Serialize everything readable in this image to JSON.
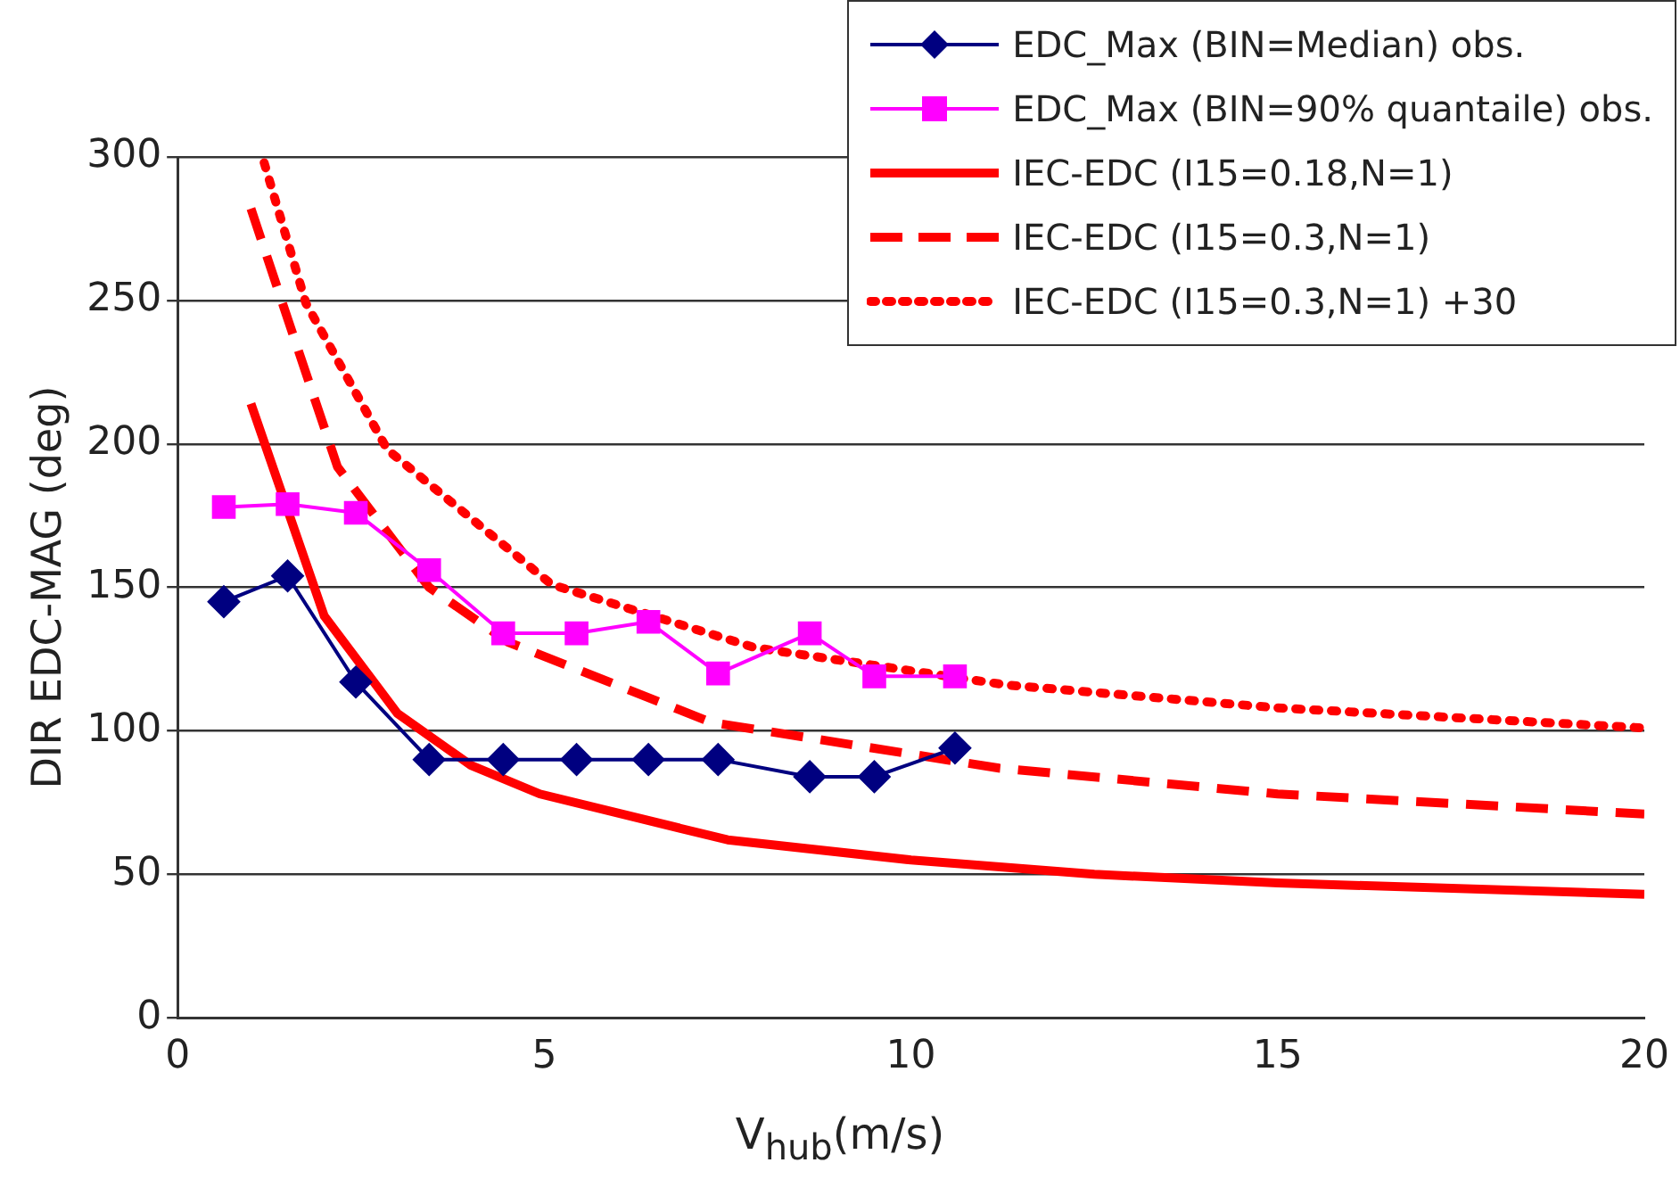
{
  "chart_data": {
    "type": "line",
    "xlabel": "V$_{hub}$(m/s)",
    "ylabel": "DIR EDC-MAG (deg)",
    "xlim": [
      0,
      20
    ],
    "xticks": [
      0,
      5,
      10,
      15,
      20
    ],
    "ylim": [
      0,
      300
    ],
    "yticks": [
      0,
      50,
      100,
      150,
      200,
      250,
      300
    ],
    "grid": "y",
    "legend": "top right",
    "series": [
      {
        "name": "EDC_Max (BIN=Median) obs.",
        "color": "#000080",
        "marker": "diamond",
        "line_style": "solid",
        "x": [
          0.63,
          1.5,
          2.43,
          3.43,
          4.44,
          5.44,
          6.42,
          7.37,
          8.62,
          9.5,
          10.6
        ],
        "values": [
          145,
          154,
          117,
          90,
          90,
          90,
          90,
          90,
          84,
          84,
          94
        ]
      },
      {
        "name": "EDC_Max (BIN=90% quantaile) obs.",
        "color": "#ff00ff",
        "marker": "square",
        "line_style": "solid",
        "x": [
          0.63,
          1.5,
          2.43,
          3.43,
          4.44,
          5.44,
          6.42,
          7.37,
          8.62,
          9.5,
          10.6
        ],
        "values": [
          178,
          179,
          176,
          156,
          134,
          134,
          138,
          120,
          134,
          119,
          119
        ]
      },
      {
        "name": "IEC-EDC (I15=0.18,N=1)",
        "color": "#ff0000",
        "marker": "none",
        "line_style": "solid",
        "x": [
          1,
          2,
          3,
          4,
          4.94,
          7.5,
          10,
          12.5,
          15,
          20
        ],
        "values": [
          214,
          140,
          106,
          88,
          78,
          62,
          55,
          50,
          47,
          43
        ]
      },
      {
        "name": "IEC-EDC (I15=0.3,N=1)",
        "color": "#ff0000",
        "marker": "none",
        "line_style": "dashed",
        "x": [
          1,
          1.43,
          2.18,
          3.43,
          4.5,
          7.27,
          11.2,
          15,
          20
        ],
        "values": [
          282,
          249,
          192,
          150,
          131,
          103,
          87,
          78,
          71
        ]
      },
      {
        "name": "IEC-EDC (I15=0.3,N=1) +30",
        "color": "#ff0000",
        "marker": "none",
        "line_style": "dotted",
        "x": [
          1.18,
          1.75,
          2.86,
          5.1,
          7.87,
          11.3,
          15,
          20
        ],
        "values": [
          298,
          249,
          198,
          151,
          129,
          116,
          108,
          101
        ]
      }
    ]
  }
}
